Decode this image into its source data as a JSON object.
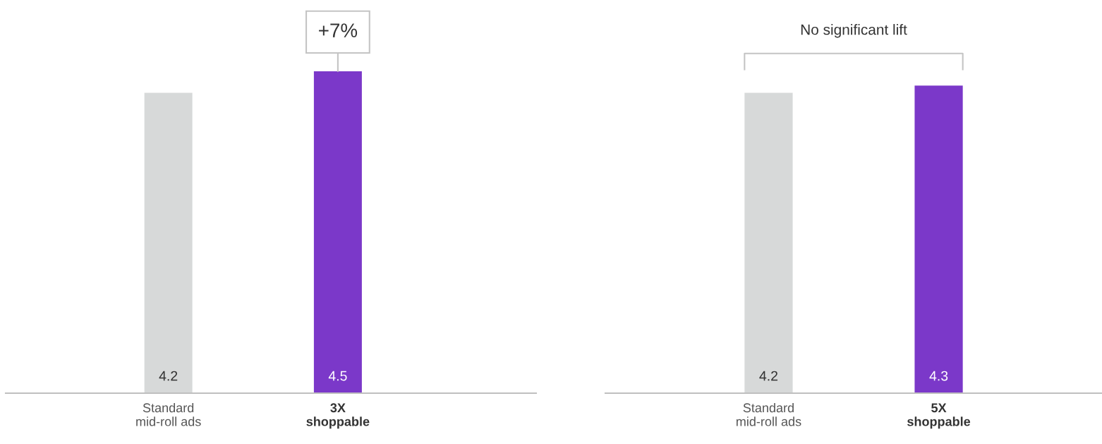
{
  "chart_data": [
    {
      "type": "bar",
      "categories": [
        "Standard\nmid-roll ads",
        "3X\nshoppable"
      ],
      "values": [
        4.2,
        4.5
      ],
      "colors": [
        "#d7d9d9",
        "#7b38c9"
      ],
      "data_labels": true,
      "annotations": [
        {
          "text": "+7%",
          "x": "3X\nshoppable",
          "y": 4.5
        }
      ]
    },
    {
      "type": "bar",
      "categories": [
        "Standard\nmid-roll ads",
        "5X\nshoppable"
      ],
      "values": [
        4.2,
        4.3
      ],
      "colors": [
        "#d7d9d9",
        "#7b38c9"
      ],
      "data_labels": true,
      "annotations": [
        "No significant lift"
      ]
    }
  ]
}
